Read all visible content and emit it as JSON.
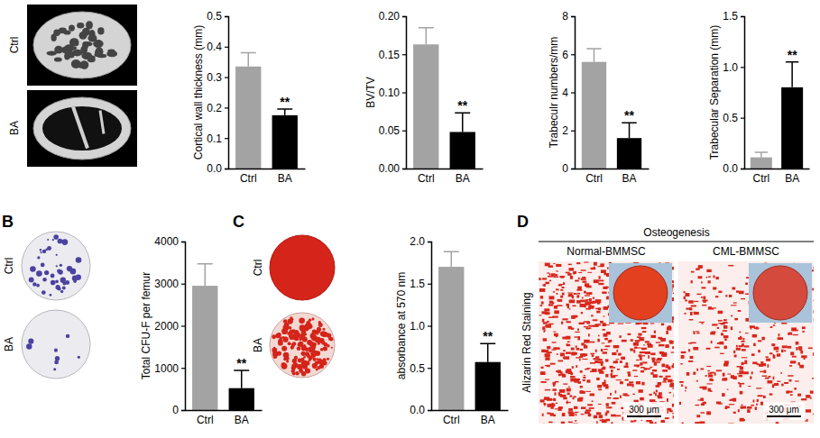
{
  "chart_data": [
    {
      "type": "bar",
      "ylabel": "Cortical wall thickness (mm)",
      "categories": [
        "Ctrl",
        "BA"
      ],
      "values": [
        0.335,
        0.175
      ],
      "errors": [
        0.045,
        0.02
      ],
      "colors": [
        "#a3a3a3",
        "#000000"
      ],
      "ylim": [
        0,
        0.5
      ],
      "yticks": [
        {
          "value": 0,
          "label": "0.0"
        },
        0.1,
        0.2,
        0.3,
        0.4,
        0.5
      ],
      "annotation": "**"
    },
    {
      "type": "bar",
      "ylabel": "BV/TV",
      "categories": [
        "Ctrl",
        "BA"
      ],
      "values": [
        0.163,
        0.048
      ],
      "errors": [
        0.022,
        0.025
      ],
      "colors": [
        "#a3a3a3",
        "#000000"
      ],
      "ylim": [
        0,
        0.2
      ],
      "yticks": [
        {
          "value": 0,
          "label": "0.00"
        },
        {
          "value": 0.05,
          "label": "0.05"
        },
        {
          "value": 0.1,
          "label": "0.10"
        },
        {
          "value": 0.15,
          "label": "0.15"
        },
        {
          "value": 0.2,
          "label": "0.20"
        }
      ],
      "annotation": "**"
    },
    {
      "type": "bar",
      "ylabel": "Trabeculr numbers/mm",
      "categories": [
        "Ctrl",
        "BA"
      ],
      "values": [
        5.6,
        1.6
      ],
      "errors": [
        0.7,
        0.8
      ],
      "colors": [
        "#a3a3a3",
        "#000000"
      ],
      "ylim": [
        0,
        8
      ],
      "yticks": [
        0,
        2,
        4,
        6,
        8
      ],
      "annotation": "**"
    },
    {
      "type": "bar",
      "ylabel": "Trabecular Separation (mm)",
      "categories": [
        "Ctrl",
        "BA"
      ],
      "values": [
        0.11,
        0.8
      ],
      "errors": [
        0.05,
        0.25
      ],
      "colors": [
        "#a3a3a3",
        "#000000"
      ],
      "ylim": [
        0,
        1.5
      ],
      "yticks": [
        {
          "value": 0,
          "label": "0.0"
        },
        0.5,
        {
          "value": 1,
          "label": "1.0"
        },
        1.5
      ],
      "annotation": "**"
    },
    {
      "type": "bar",
      "ylabel": "Total CFU-F per femur",
      "categories": [
        "Ctrl",
        "BA"
      ],
      "values": [
        2950,
        520
      ],
      "errors": [
        520,
        420
      ],
      "colors": [
        "#a3a3a3",
        "#000000"
      ],
      "ylim": [
        0,
        4000
      ],
      "yticks": [
        0,
        1000,
        2000,
        3000,
        4000
      ],
      "annotation": "**"
    },
    {
      "type": "bar",
      "ylabel": "absorbance at 570 nm",
      "categories": [
        "Ctrl",
        "BA"
      ],
      "values": [
        1.7,
        0.57
      ],
      "errors": [
        0.18,
        0.22
      ],
      "colors": [
        "#a3a3a3",
        "#000000"
      ],
      "ylim": [
        0,
        2
      ],
      "yticks": [
        {
          "value": 0,
          "label": "0.0"
        },
        0.5,
        {
          "value": 1,
          "label": "1.0"
        },
        1.5,
        {
          "value": 2,
          "label": "2.0"
        }
      ],
      "annotation": "**"
    }
  ],
  "image_panels": {
    "A": {
      "row_labels": [
        "Ctrl",
        "BA"
      ]
    },
    "B": {
      "letter": "B",
      "row_labels": [
        "Ctrl",
        "BA"
      ]
    },
    "C": {
      "letter": "C",
      "row_labels": [
        "Ctrl",
        "BA"
      ]
    },
    "D": {
      "letter": "D",
      "title": "Osteogenesis",
      "column_labels": [
        "Normal-BMMSC",
        "CML-BMMSC"
      ],
      "row_label": "Alizarin Red Staining",
      "scale_bar": "300 μm"
    }
  }
}
